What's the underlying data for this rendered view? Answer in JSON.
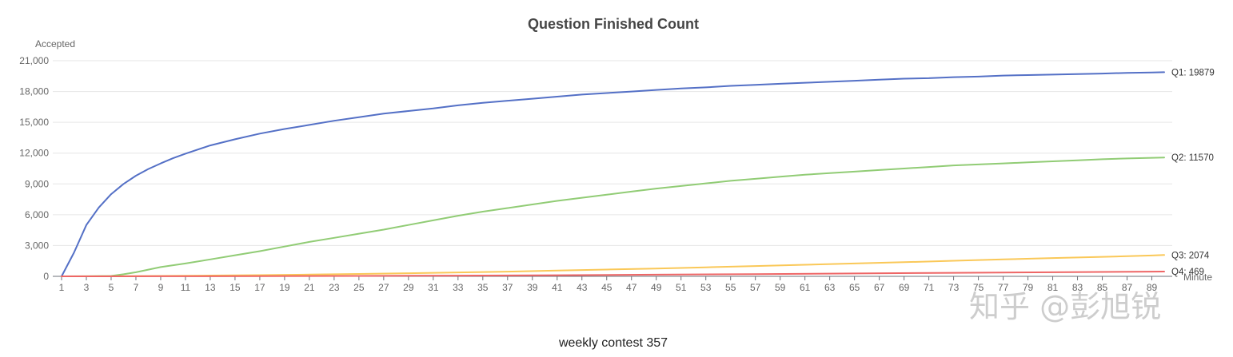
{
  "chart_data": {
    "type": "line",
    "title": "Question Finished Count",
    "ylabel": "Accepted",
    "xlabel": "Minute",
    "ylim": [
      0,
      21000
    ],
    "yticks": [
      0,
      3000,
      6000,
      9000,
      12000,
      15000,
      18000,
      21000
    ],
    "ytick_labels": [
      "0",
      "3,000",
      "6,000",
      "9,000",
      "12,000",
      "15,000",
      "18,000",
      "21,000"
    ],
    "xlim": [
      1,
      90
    ],
    "xtick_labels": [
      "1",
      "3",
      "5",
      "7",
      "9",
      "11",
      "13",
      "15",
      "17",
      "19",
      "21",
      "23",
      "25",
      "27",
      "29",
      "31",
      "33",
      "35",
      "37",
      "39",
      "41",
      "43",
      "45",
      "47",
      "49",
      "51",
      "53",
      "55",
      "57",
      "59",
      "61",
      "63",
      "65",
      "67",
      "69",
      "71",
      "73",
      "75",
      "77",
      "79",
      "81",
      "83",
      "85",
      "87",
      "89"
    ],
    "grid": true,
    "series": [
      {
        "name": "Q1",
        "end_label": "Q1: 19879",
        "color": "#5470c6",
        "points": [
          [
            1,
            0
          ],
          [
            2,
            2300
          ],
          [
            3,
            5000
          ],
          [
            4,
            6700
          ],
          [
            5,
            8000
          ],
          [
            6,
            9000
          ],
          [
            7,
            9800
          ],
          [
            8,
            10450
          ],
          [
            9,
            11000
          ],
          [
            10,
            11500
          ],
          [
            11,
            11950
          ],
          [
            13,
            12750
          ],
          [
            15,
            13350
          ],
          [
            17,
            13900
          ],
          [
            19,
            14350
          ],
          [
            21,
            14750
          ],
          [
            23,
            15150
          ],
          [
            25,
            15500
          ],
          [
            27,
            15850
          ],
          [
            29,
            16100
          ],
          [
            31,
            16350
          ],
          [
            33,
            16650
          ],
          [
            35,
            16900
          ],
          [
            37,
            17100
          ],
          [
            39,
            17300
          ],
          [
            41,
            17500
          ],
          [
            43,
            17700
          ],
          [
            45,
            17850
          ],
          [
            47,
            18000
          ],
          [
            49,
            18150
          ],
          [
            51,
            18300
          ],
          [
            53,
            18400
          ],
          [
            55,
            18550
          ],
          [
            57,
            18650
          ],
          [
            59,
            18750
          ],
          [
            61,
            18850
          ],
          [
            63,
            18950
          ],
          [
            65,
            19050
          ],
          [
            67,
            19150
          ],
          [
            69,
            19250
          ],
          [
            71,
            19300
          ],
          [
            73,
            19400
          ],
          [
            75,
            19450
          ],
          [
            77,
            19550
          ],
          [
            79,
            19600
          ],
          [
            81,
            19650
          ],
          [
            83,
            19700
          ],
          [
            85,
            19750
          ],
          [
            87,
            19820
          ],
          [
            89,
            19860
          ],
          [
            90,
            19879
          ]
        ]
      },
      {
        "name": "Q2",
        "end_label": "Q2: 11570",
        "color": "#91cc75",
        "points": [
          [
            1,
            0
          ],
          [
            3,
            10
          ],
          [
            5,
            40
          ],
          [
            6,
            200
          ],
          [
            7,
            400
          ],
          [
            8,
            650
          ],
          [
            9,
            900
          ],
          [
            11,
            1250
          ],
          [
            13,
            1650
          ],
          [
            15,
            2050
          ],
          [
            17,
            2450
          ],
          [
            19,
            2900
          ],
          [
            21,
            3350
          ],
          [
            23,
            3750
          ],
          [
            25,
            4150
          ],
          [
            27,
            4550
          ],
          [
            29,
            5000
          ],
          [
            31,
            5450
          ],
          [
            33,
            5900
          ],
          [
            35,
            6300
          ],
          [
            37,
            6650
          ],
          [
            39,
            7000
          ],
          [
            41,
            7350
          ],
          [
            43,
            7650
          ],
          [
            45,
            7950
          ],
          [
            47,
            8250
          ],
          [
            49,
            8550
          ],
          [
            51,
            8800
          ],
          [
            53,
            9050
          ],
          [
            55,
            9300
          ],
          [
            57,
            9500
          ],
          [
            59,
            9700
          ],
          [
            61,
            9900
          ],
          [
            63,
            10050
          ],
          [
            65,
            10200
          ],
          [
            67,
            10350
          ],
          [
            69,
            10500
          ],
          [
            71,
            10650
          ],
          [
            73,
            10800
          ],
          [
            75,
            10900
          ],
          [
            77,
            11000
          ],
          [
            79,
            11100
          ],
          [
            81,
            11200
          ],
          [
            83,
            11300
          ],
          [
            85,
            11400
          ],
          [
            87,
            11480
          ],
          [
            89,
            11540
          ],
          [
            90,
            11570
          ]
        ]
      },
      {
        "name": "Q3",
        "end_label": "Q3: 2074",
        "color": "#fac858",
        "points": [
          [
            1,
            0
          ],
          [
            5,
            10
          ],
          [
            9,
            40
          ],
          [
            13,
            80
          ],
          [
            17,
            120
          ],
          [
            21,
            170
          ],
          [
            25,
            230
          ],
          [
            29,
            300
          ],
          [
            33,
            380
          ],
          [
            37,
            460
          ],
          [
            41,
            560
          ],
          [
            45,
            660
          ],
          [
            49,
            760
          ],
          [
            53,
            880
          ],
          [
            57,
            1000
          ],
          [
            61,
            1130
          ],
          [
            65,
            1250
          ],
          [
            69,
            1380
          ],
          [
            73,
            1520
          ],
          [
            77,
            1650
          ],
          [
            81,
            1780
          ],
          [
            85,
            1900
          ],
          [
            89,
            2030
          ],
          [
            90,
            2074
          ]
        ]
      },
      {
        "name": "Q4",
        "end_label": "Q4: 469",
        "color": "#ee6666",
        "points": [
          [
            1,
            0
          ],
          [
            9,
            5
          ],
          [
            17,
            20
          ],
          [
            25,
            40
          ],
          [
            33,
            70
          ],
          [
            41,
            110
          ],
          [
            49,
            160
          ],
          [
            57,
            220
          ],
          [
            65,
            280
          ],
          [
            73,
            340
          ],
          [
            81,
            400
          ],
          [
            89,
            460
          ],
          [
            90,
            469
          ]
        ]
      }
    ]
  },
  "caption": "weekly contest 357",
  "watermark": "知乎 @彭旭锐"
}
